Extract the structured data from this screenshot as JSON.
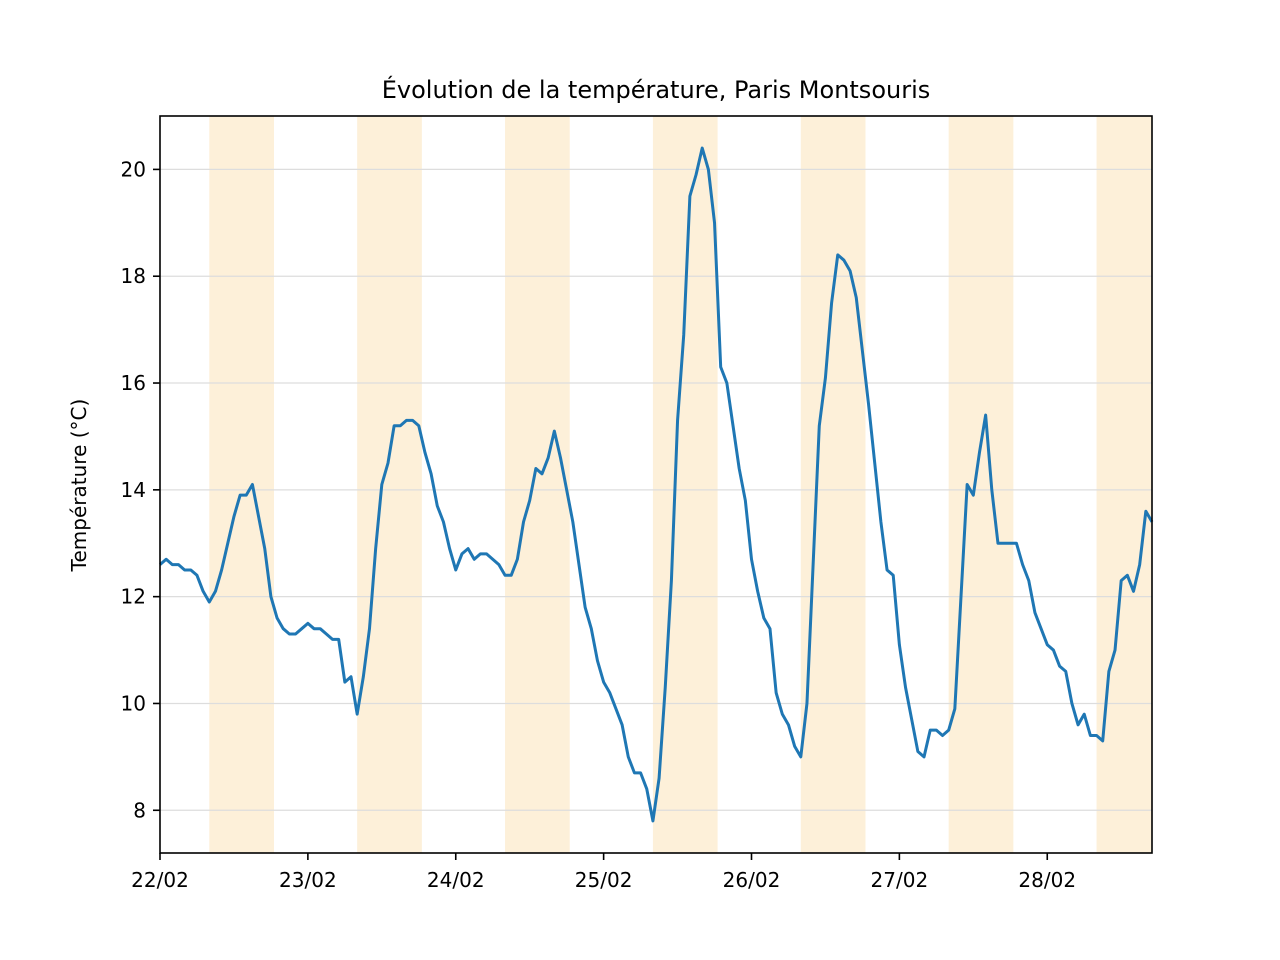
{
  "chart_data": {
    "type": "line",
    "title": "Évolution de la température, Paris Montsouris",
    "xlabel": "",
    "ylabel": "Température (°C)",
    "x_start": "22/02 00:00",
    "x_end": "28/02 17:00",
    "x_step": "1h",
    "xlim": [
      "22/02 00:00",
      "28/02 17:00"
    ],
    "ylim": [
      7.2,
      21.0
    ],
    "x_ticks": [
      "22/02",
      "23/02",
      "24/02",
      "25/02",
      "26/02",
      "27/02",
      "28/02"
    ],
    "y_ticks": [
      8,
      10,
      12,
      14,
      16,
      18,
      20
    ],
    "grid": "horizontal",
    "legend": "none",
    "colors": {
      "line": "#1f77b4",
      "daytime_band": "#fdf0d9",
      "grid": "#dddddd"
    },
    "daytime_bands": [
      [
        "22/02 08:00",
        "22/02 18:30"
      ],
      [
        "23/02 08:00",
        "23/02 18:30"
      ],
      [
        "24/02 08:00",
        "24/02 18:30"
      ],
      [
        "25/02 08:00",
        "25/02 18:30"
      ],
      [
        "26/02 08:00",
        "26/02 18:30"
      ],
      [
        "27/02 08:00",
        "27/02 18:30"
      ],
      [
        "28/02 08:00",
        "28/02 18:30"
      ]
    ],
    "series": [
      {
        "values": [
          12.6,
          12.7,
          12.6,
          12.6,
          12.5,
          12.5,
          12.4,
          12.1,
          11.9,
          12.1,
          12.5,
          13.0,
          13.5,
          13.9,
          13.9,
          14.1,
          13.5,
          12.9,
          12.0,
          11.6,
          11.4,
          11.3,
          11.3,
          11.4,
          11.5,
          11.4,
          11.4,
          11.3,
          11.2,
          11.2,
          10.4,
          10.5,
          9.8,
          10.5,
          11.4,
          12.9,
          14.1,
          14.5,
          15.2,
          15.2,
          15.3,
          15.3,
          15.2,
          14.7,
          14.3,
          13.7,
          13.4,
          12.9,
          12.5,
          12.8,
          12.9,
          12.7,
          12.8,
          12.8,
          12.7,
          12.6,
          12.4,
          12.4,
          12.7,
          13.4,
          13.8,
          14.4,
          14.3,
          14.6,
          15.1,
          14.6,
          14.0,
          13.4,
          12.6,
          11.8,
          11.4,
          10.8,
          10.4,
          10.2,
          9.9,
          9.6,
          9.0,
          8.7,
          8.7,
          8.4,
          7.8,
          8.6,
          10.3,
          12.3,
          15.3,
          16.9,
          19.5,
          19.9,
          20.4,
          20.0,
          19.0,
          16.3,
          16.0,
          15.2,
          14.4,
          13.8,
          12.7,
          12.1,
          11.6,
          11.4,
          10.2,
          9.8,
          9.6,
          9.2,
          9.0,
          10.0,
          12.6,
          15.2,
          16.1,
          17.5,
          18.4,
          18.3,
          18.1,
          17.6,
          16.6,
          15.6,
          14.5,
          13.4,
          12.5,
          12.4,
          11.1,
          10.3,
          9.7,
          9.1,
          9.0,
          9.5,
          9.5,
          9.4,
          9.5,
          9.9,
          12.0,
          14.1,
          13.9,
          14.7,
          15.4,
          14.0,
          13.0,
          13.0,
          13.0,
          13.0,
          12.6,
          12.3,
          11.7,
          11.4,
          11.1,
          11.0,
          10.7,
          10.6,
          10.0,
          9.6,
          9.8,
          9.4,
          9.4,
          9.3,
          10.6,
          11.0,
          12.3,
          12.4,
          12.1,
          12.6,
          13.6,
          13.4
        ]
      }
    ]
  }
}
